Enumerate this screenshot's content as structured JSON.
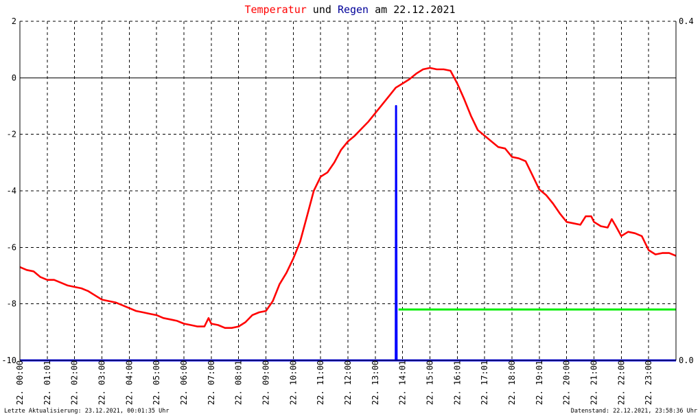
{
  "title": {
    "part1": "Temperatur",
    "part2": " und ",
    "part3": "Regen",
    "part4": " am 22.12.2021"
  },
  "footer": {
    "left": "Letzte Aktualisierung: 23.12.2021, 00:01:35 Uhr",
    "right": "Datenstand: 22.12.2021, 23:58:36 Uhr"
  },
  "colors": {
    "temperature": "#ff0000",
    "rain": "#0000ff",
    "rain_line": "#00ee00",
    "title_blue": "#000099",
    "grid": "#000000"
  },
  "chart_data": {
    "type": "line",
    "title": "Temperatur und Regen am 22.12.2021",
    "grid": true,
    "x_range_hours": [
      0,
      24
    ],
    "x_ticks": [
      {
        "h": 0,
        "label": "22. 00:00"
      },
      {
        "h": 1,
        "label": "22. 01:01"
      },
      {
        "h": 2,
        "label": "22. 02:00"
      },
      {
        "h": 3,
        "label": "22. 03:00"
      },
      {
        "h": 4,
        "label": "22. 04:00"
      },
      {
        "h": 5,
        "label": "22. 05:00"
      },
      {
        "h": 6,
        "label": "22. 06:00"
      },
      {
        "h": 7,
        "label": "22. 07:00"
      },
      {
        "h": 8,
        "label": "22. 08:01"
      },
      {
        "h": 9,
        "label": "22. 09:00"
      },
      {
        "h": 10,
        "label": "22. 10:00"
      },
      {
        "h": 11,
        "label": "22. 11:00"
      },
      {
        "h": 12,
        "label": "22. 12:00"
      },
      {
        "h": 13,
        "label": "22. 13:00"
      },
      {
        "h": 14,
        "label": "22. 14:01"
      },
      {
        "h": 15,
        "label": "22. 15:00"
      },
      {
        "h": 16,
        "label": "22. 16:01"
      },
      {
        "h": 17,
        "label": "22. 17:01"
      },
      {
        "h": 18,
        "label": "22. 18:00"
      },
      {
        "h": 19,
        "label": "22. 19:01"
      },
      {
        "h": 20,
        "label": "22. 20:00"
      },
      {
        "h": 21,
        "label": "22. 21:00"
      },
      {
        "h": 22,
        "label": "22. 22:00"
      },
      {
        "h": 23,
        "label": "22. 23:00"
      }
    ],
    "y_left": {
      "range": [
        -10,
        2
      ],
      "ticks": [
        2,
        0,
        -2,
        -4,
        -6,
        -8,
        -10
      ],
      "tick_labels": [
        "2",
        "0",
        "-2",
        "-4",
        "-6",
        "-8",
        "-10"
      ]
    },
    "y_right": {
      "range": [
        0,
        0.4
      ],
      "ticks": [
        0.4,
        0.0
      ],
      "tick_labels": [
        "0.4",
        "0.0"
      ]
    },
    "series": [
      {
        "type": "line",
        "axis": "left",
        "x": [
          0,
          0.25,
          0.5,
          0.75,
          1.0,
          1.25,
          1.5,
          1.75,
          2.0,
          2.25,
          2.5,
          2.75,
          3.0,
          3.25,
          3.5,
          3.75,
          4.0,
          4.25,
          4.5,
          4.75,
          5.0,
          5.25,
          5.5,
          5.75,
          6.0,
          6.25,
          6.5,
          6.75,
          6.9,
          7.0,
          7.25,
          7.5,
          7.6,
          7.75,
          8.0,
          8.25,
          8.5,
          8.75,
          9.0,
          9.25,
          9.5,
          9.75,
          10.0,
          10.25,
          10.5,
          10.75,
          11.0,
          11.25,
          11.5,
          11.75,
          12.0,
          12.25,
          12.5,
          12.75,
          13.0,
          13.25,
          13.5,
          13.75,
          14.0,
          14.25,
          14.5,
          14.75,
          15.0,
          15.25,
          15.5,
          15.75,
          16.0,
          16.25,
          16.5,
          16.75,
          17.0,
          17.25,
          17.5,
          17.75,
          18.0,
          18.25,
          18.5,
          18.75,
          19.0,
          19.25,
          19.5,
          19.75,
          20.0,
          20.25,
          20.5,
          20.7,
          20.9,
          21.0,
          21.25,
          21.5,
          21.65,
          21.8,
          22.0,
          22.25,
          22.5,
          22.75,
          23.0,
          23.25,
          23.5,
          23.75,
          24.0
        ],
        "values": [
          -6.7,
          -6.8,
          -6.85,
          -7.05,
          -7.15,
          -7.15,
          -7.25,
          -7.35,
          -7.4,
          -7.45,
          -7.55,
          -7.7,
          -7.85,
          -7.9,
          -7.95,
          -8.05,
          -8.15,
          -8.25,
          -8.3,
          -8.35,
          -8.4,
          -8.5,
          -8.55,
          -8.6,
          -8.7,
          -8.75,
          -8.8,
          -8.8,
          -8.5,
          -8.7,
          -8.75,
          -8.85,
          -8.85,
          -8.85,
          -8.8,
          -8.65,
          -8.4,
          -8.3,
          -8.25,
          -7.9,
          -7.3,
          -6.9,
          -6.4,
          -5.8,
          -4.9,
          -4.0,
          -3.5,
          -3.35,
          -3.0,
          -2.55,
          -2.25,
          -2.05,
          -1.8,
          -1.55,
          -1.25,
          -0.95,
          -0.65,
          -0.35,
          -0.2,
          -0.05,
          0.15,
          0.3,
          0.35,
          0.3,
          0.3,
          0.25,
          -0.2,
          -0.75,
          -1.35,
          -1.85,
          -2.05,
          -2.25,
          -2.45,
          -2.5,
          -2.8,
          -2.85,
          -2.95,
          -3.45,
          -3.95,
          -4.15,
          -4.45,
          -4.8,
          -5.1,
          -5.15,
          -5.2,
          -4.9,
          -4.9,
          -5.1,
          -5.25,
          -5.3,
          -5.0,
          -5.25,
          -5.6,
          -5.45,
          -5.5,
          -5.6,
          -6.1,
          -6.25,
          -6.2,
          -6.2,
          -6.3
        ]
      },
      {
        "type": "line",
        "axis": "right",
        "x": [
          0,
          13.75,
          13.76,
          13.78,
          13.8,
          24.0
        ],
        "values": [
          0.0,
          0.0,
          0.3,
          0.0,
          0.0,
          0.0
        ]
      },
      {
        "type": "line",
        "axis": "right",
        "x": [
          13.85,
          24.0
        ],
        "values": [
          0.06,
          0.06
        ]
      }
    ]
  }
}
